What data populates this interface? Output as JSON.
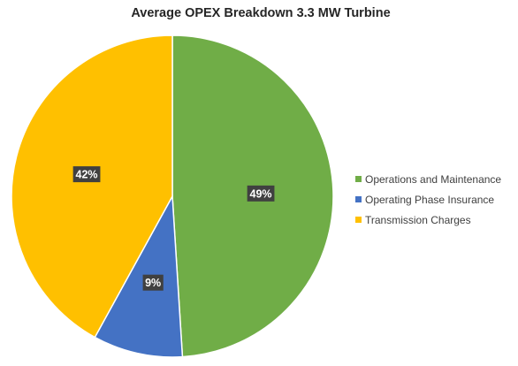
{
  "chart_data": {
    "type": "pie",
    "title": "Average OPEX Breakdown 3.3 MW Turbine",
    "legend_position": "right",
    "slices": [
      {
        "label": "Operations and Maintenance",
        "value": 49,
        "display": "49%",
        "color": "#70ad47"
      },
      {
        "label": "Operating Phase Insurance",
        "value": 9,
        "display": "9%",
        "color": "#4472c4"
      },
      {
        "label": "Transmission Charges",
        "value": 42,
        "display": "42%",
        "color": "#ffc000"
      }
    ]
  }
}
